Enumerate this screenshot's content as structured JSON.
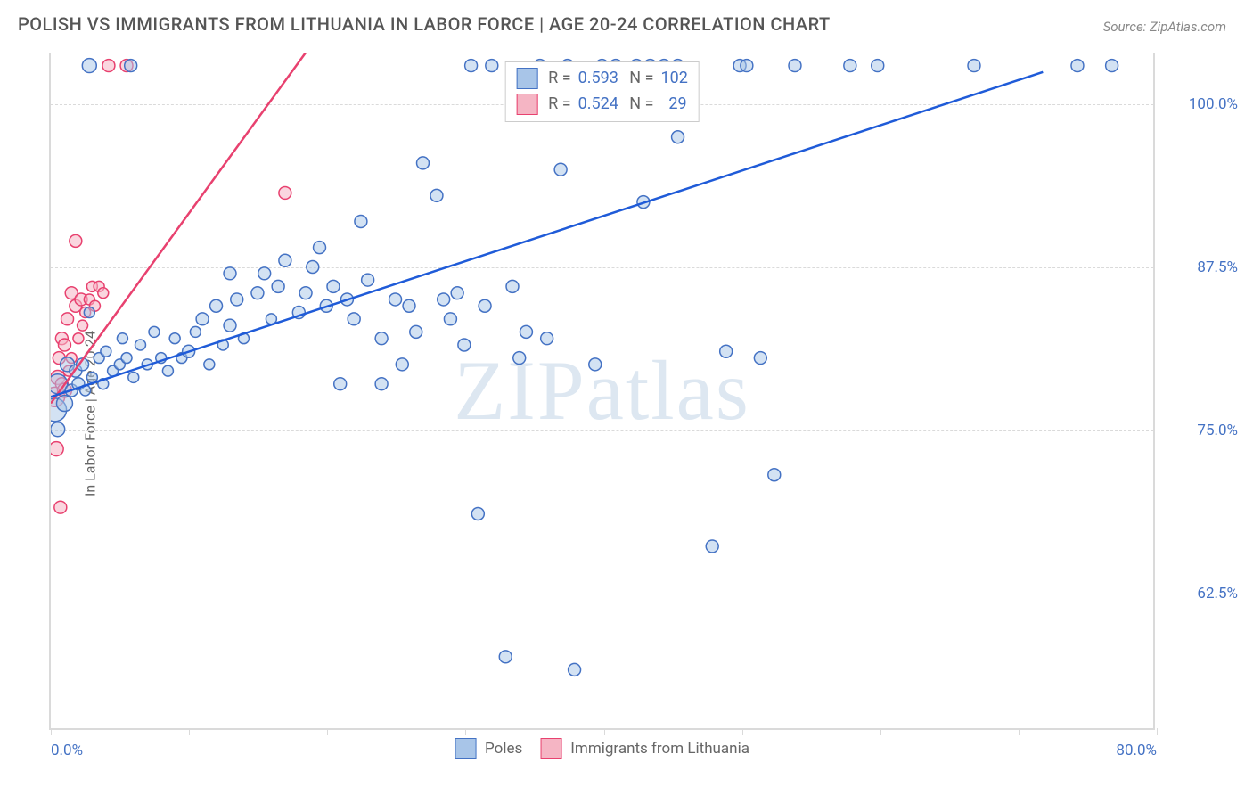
{
  "title": "POLISH VS IMMIGRANTS FROM LITHUANIA IN LABOR FORCE | AGE 20-24 CORRELATION CHART",
  "source": "Source: ZipAtlas.com",
  "watermark": "ZIPatlas",
  "y_axis_label": "In Labor Force | Age 20-24",
  "chart": {
    "type": "scatter",
    "background_color": "#ffffff",
    "grid_color": "#dadada",
    "grid_style": "dashed",
    "axis_color": "#dadada",
    "xlim": [
      0,
      80
    ],
    "ylim": [
      52,
      104
    ],
    "x_ticks": [
      0,
      10,
      20,
      30,
      40,
      50,
      60,
      70,
      80
    ],
    "x_tick_labels": {
      "0": "0.0%",
      "80": "80.0%"
    },
    "y_ticks": [
      62.5,
      75.0,
      87.5,
      100.0
    ],
    "y_tick_labels": [
      "62.5%",
      "75.0%",
      "87.5%",
      "100.0%"
    ],
    "tick_label_color": "#4472c4",
    "tick_label_fontsize": 17,
    "axis_label_color": "#666666",
    "axis_label_fontsize": 16,
    "series": [
      {
        "name": "Poles",
        "label": "Poles",
        "marker_fill": "#a8c5e8",
        "marker_stroke": "#4472c4",
        "marker_fill_opacity": 0.5,
        "marker_stroke_width": 1.5,
        "legend_swatch_fill": "#a8c5e8",
        "legend_swatch_stroke": "#4472c4",
        "trend_line_color": "#1f5bd8",
        "trend_line_width": 2.5,
        "trend_line": {
          "x1": 0,
          "y1": 77.5,
          "x2": 72,
          "y2": 102.5
        },
        "R": "0.593",
        "N": "102",
        "points": [
          {
            "x": 0.3,
            "y": 76.5,
            "r": 13
          },
          {
            "x": 0.5,
            "y": 78.5,
            "r": 11
          },
          {
            "x": 0.5,
            "y": 75.0,
            "r": 8
          },
          {
            "x": 1.0,
            "y": 77.0,
            "r": 9
          },
          {
            "x": 1.2,
            "y": 80.0,
            "r": 8
          },
          {
            "x": 1.5,
            "y": 78.0,
            "r": 7
          },
          {
            "x": 1.8,
            "y": 79.5,
            "r": 7
          },
          {
            "x": 2.0,
            "y": 78.5,
            "r": 7
          },
          {
            "x": 2.3,
            "y": 80.0,
            "r": 7
          },
          {
            "x": 2.5,
            "y": 78.0,
            "r": 6
          },
          {
            "x": 2.8,
            "y": 84.0,
            "r": 6
          },
          {
            "x": 2.8,
            "y": 103.0,
            "r": 8
          },
          {
            "x": 3.0,
            "y": 79.0,
            "r": 6
          },
          {
            "x": 3.5,
            "y": 80.5,
            "r": 6
          },
          {
            "x": 3.8,
            "y": 78.5,
            "r": 6
          },
          {
            "x": 4.0,
            "y": 81.0,
            "r": 6
          },
          {
            "x": 4.5,
            "y": 79.5,
            "r": 6
          },
          {
            "x": 5.0,
            "y": 80.0,
            "r": 6
          },
          {
            "x": 5.2,
            "y": 82.0,
            "r": 6
          },
          {
            "x": 5.5,
            "y": 80.5,
            "r": 6
          },
          {
            "x": 5.8,
            "y": 103.0,
            "r": 7
          },
          {
            "x": 6.0,
            "y": 79.0,
            "r": 6
          },
          {
            "x": 6.5,
            "y": 81.5,
            "r": 6
          },
          {
            "x": 7.0,
            "y": 80.0,
            "r": 6
          },
          {
            "x": 7.5,
            "y": 82.5,
            "r": 6
          },
          {
            "x": 8.0,
            "y": 80.5,
            "r": 6
          },
          {
            "x": 8.5,
            "y": 79.5,
            "r": 6
          },
          {
            "x": 9.0,
            "y": 82.0,
            "r": 6
          },
          {
            "x": 9.5,
            "y": 80.5,
            "r": 6
          },
          {
            "x": 10.0,
            "y": 81.0,
            "r": 7
          },
          {
            "x": 10.5,
            "y": 82.5,
            "r": 6
          },
          {
            "x": 11.0,
            "y": 83.5,
            "r": 7
          },
          {
            "x": 11.5,
            "y": 80.0,
            "r": 6
          },
          {
            "x": 12.0,
            "y": 84.5,
            "r": 7
          },
          {
            "x": 12.5,
            "y": 81.5,
            "r": 6
          },
          {
            "x": 13.0,
            "y": 83.0,
            "r": 7
          },
          {
            "x": 13.0,
            "y": 87.0,
            "r": 7
          },
          {
            "x": 13.5,
            "y": 85.0,
            "r": 7
          },
          {
            "x": 14.0,
            "y": 82.0,
            "r": 6
          },
          {
            "x": 15.0,
            "y": 85.5,
            "r": 7
          },
          {
            "x": 15.5,
            "y": 87.0,
            "r": 7
          },
          {
            "x": 16.0,
            "y": 83.5,
            "r": 6
          },
          {
            "x": 16.5,
            "y": 86.0,
            "r": 7
          },
          {
            "x": 17.0,
            "y": 88.0,
            "r": 7
          },
          {
            "x": 18.0,
            "y": 84.0,
            "r": 7
          },
          {
            "x": 18.5,
            "y": 85.5,
            "r": 7
          },
          {
            "x": 19.0,
            "y": 87.5,
            "r": 7
          },
          {
            "x": 19.5,
            "y": 89.0,
            "r": 7
          },
          {
            "x": 20.0,
            "y": 84.5,
            "r": 7
          },
          {
            "x": 20.5,
            "y": 86.0,
            "r": 7
          },
          {
            "x": 21.0,
            "y": 78.5,
            "r": 7
          },
          {
            "x": 21.5,
            "y": 85.0,
            "r": 7
          },
          {
            "x": 22.0,
            "y": 83.5,
            "r": 7
          },
          {
            "x": 22.5,
            "y": 91.0,
            "r": 7
          },
          {
            "x": 23.0,
            "y": 86.5,
            "r": 7
          },
          {
            "x": 24.0,
            "y": 82.0,
            "r": 7
          },
          {
            "x": 24.0,
            "y": 78.5,
            "r": 7
          },
          {
            "x": 25.0,
            "y": 85.0,
            "r": 7
          },
          {
            "x": 25.5,
            "y": 80.0,
            "r": 7
          },
          {
            "x": 26.0,
            "y": 84.5,
            "r": 7
          },
          {
            "x": 26.5,
            "y": 82.5,
            "r": 7
          },
          {
            "x": 27.0,
            "y": 95.5,
            "r": 7
          },
          {
            "x": 28.0,
            "y": 93.0,
            "r": 7
          },
          {
            "x": 28.5,
            "y": 85.0,
            "r": 7
          },
          {
            "x": 29.0,
            "y": 83.5,
            "r": 7
          },
          {
            "x": 29.5,
            "y": 85.5,
            "r": 7
          },
          {
            "x": 30.0,
            "y": 81.5,
            "r": 7
          },
          {
            "x": 30.5,
            "y": 103.0,
            "r": 7
          },
          {
            "x": 31.0,
            "y": 68.5,
            "r": 7
          },
          {
            "x": 31.5,
            "y": 84.5,
            "r": 7
          },
          {
            "x": 32.0,
            "y": 103.0,
            "r": 7
          },
          {
            "x": 33.0,
            "y": 57.5,
            "r": 7
          },
          {
            "x": 33.5,
            "y": 86.0,
            "r": 7
          },
          {
            "x": 34.0,
            "y": 80.5,
            "r": 7
          },
          {
            "x": 34.5,
            "y": 82.5,
            "r": 7
          },
          {
            "x": 35.5,
            "y": 103.0,
            "r": 7
          },
          {
            "x": 36.0,
            "y": 82.0,
            "r": 7
          },
          {
            "x": 37.0,
            "y": 95.0,
            "r": 7
          },
          {
            "x": 37.5,
            "y": 103.0,
            "r": 7
          },
          {
            "x": 38.0,
            "y": 56.5,
            "r": 7
          },
          {
            "x": 39.5,
            "y": 80.0,
            "r": 7
          },
          {
            "x": 40.0,
            "y": 103.0,
            "r": 7
          },
          {
            "x": 41.0,
            "y": 103.0,
            "r": 7
          },
          {
            "x": 42.5,
            "y": 103.0,
            "r": 7
          },
          {
            "x": 43.0,
            "y": 92.5,
            "r": 7
          },
          {
            "x": 43.5,
            "y": 103.0,
            "r": 7
          },
          {
            "x": 44.5,
            "y": 103.0,
            "r": 7
          },
          {
            "x": 45.5,
            "y": 103.0,
            "r": 7
          },
          {
            "x": 45.5,
            "y": 97.5,
            "r": 7
          },
          {
            "x": 48.0,
            "y": 66.0,
            "r": 7
          },
          {
            "x": 49.0,
            "y": 81.0,
            "r": 7
          },
          {
            "x": 50.0,
            "y": 103.0,
            "r": 7
          },
          {
            "x": 50.5,
            "y": 103.0,
            "r": 7
          },
          {
            "x": 51.5,
            "y": 80.5,
            "r": 7
          },
          {
            "x": 52.5,
            "y": 71.5,
            "r": 7
          },
          {
            "x": 54.0,
            "y": 103.0,
            "r": 7
          },
          {
            "x": 58.0,
            "y": 103.0,
            "r": 7
          },
          {
            "x": 60.0,
            "y": 103.0,
            "r": 7
          },
          {
            "x": 67.0,
            "y": 103.0,
            "r": 7
          },
          {
            "x": 74.5,
            "y": 103.0,
            "r": 7
          },
          {
            "x": 77.0,
            "y": 103.0,
            "r": 7
          }
        ]
      },
      {
        "name": "Immigrants from Lithuania",
        "label": "Immigrants from Lithuania",
        "marker_fill": "#f5b5c4",
        "marker_stroke": "#e8416f",
        "marker_fill_opacity": 0.55,
        "marker_stroke_width": 1.5,
        "legend_swatch_fill": "#f5b5c4",
        "legend_swatch_stroke": "#e8416f",
        "trend_line_color": "#e8416f",
        "trend_line_width": 2.5,
        "trend_line": {
          "x1": 0,
          "y1": 77.0,
          "x2": 18.5,
          "y2": 104.0
        },
        "R": "0.524",
        "N": "29",
        "points": [
          {
            "x": 0.3,
            "y": 77.5,
            "r": 11
          },
          {
            "x": 0.4,
            "y": 73.5,
            "r": 8
          },
          {
            "x": 0.5,
            "y": 79.0,
            "r": 8
          },
          {
            "x": 0.6,
            "y": 80.5,
            "r": 7
          },
          {
            "x": 0.7,
            "y": 69.0,
            "r": 7
          },
          {
            "x": 0.8,
            "y": 78.5,
            "r": 7
          },
          {
            "x": 0.8,
            "y": 82.0,
            "r": 7
          },
          {
            "x": 1.0,
            "y": 78.0,
            "r": 8
          },
          {
            "x": 1.0,
            "y": 81.5,
            "r": 7
          },
          {
            "x": 1.2,
            "y": 83.5,
            "r": 7
          },
          {
            "x": 1.3,
            "y": 79.5,
            "r": 6
          },
          {
            "x": 1.5,
            "y": 80.5,
            "r": 6
          },
          {
            "x": 1.5,
            "y": 85.5,
            "r": 7
          },
          {
            "x": 1.8,
            "y": 84.5,
            "r": 7
          },
          {
            "x": 1.8,
            "y": 89.5,
            "r": 7
          },
          {
            "x": 2.0,
            "y": 82.0,
            "r": 6
          },
          {
            "x": 2.2,
            "y": 85.0,
            "r": 7
          },
          {
            "x": 2.3,
            "y": 83.0,
            "r": 6
          },
          {
            "x": 2.5,
            "y": 84.0,
            "r": 6
          },
          {
            "x": 2.8,
            "y": 85.0,
            "r": 6
          },
          {
            "x": 3.0,
            "y": 86.0,
            "r": 6
          },
          {
            "x": 3.2,
            "y": 84.5,
            "r": 6
          },
          {
            "x": 3.5,
            "y": 86.0,
            "r": 6
          },
          {
            "x": 3.8,
            "y": 85.5,
            "r": 6
          },
          {
            "x": 4.2,
            "y": 103.0,
            "r": 7
          },
          {
            "x": 5.5,
            "y": 103.0,
            "r": 7
          },
          {
            "x": 17.0,
            "y": 93.2,
            "r": 7
          }
        ]
      }
    ],
    "legend_bottom_labels": [
      "Poles",
      "Immigrants from Lithuania"
    ]
  }
}
